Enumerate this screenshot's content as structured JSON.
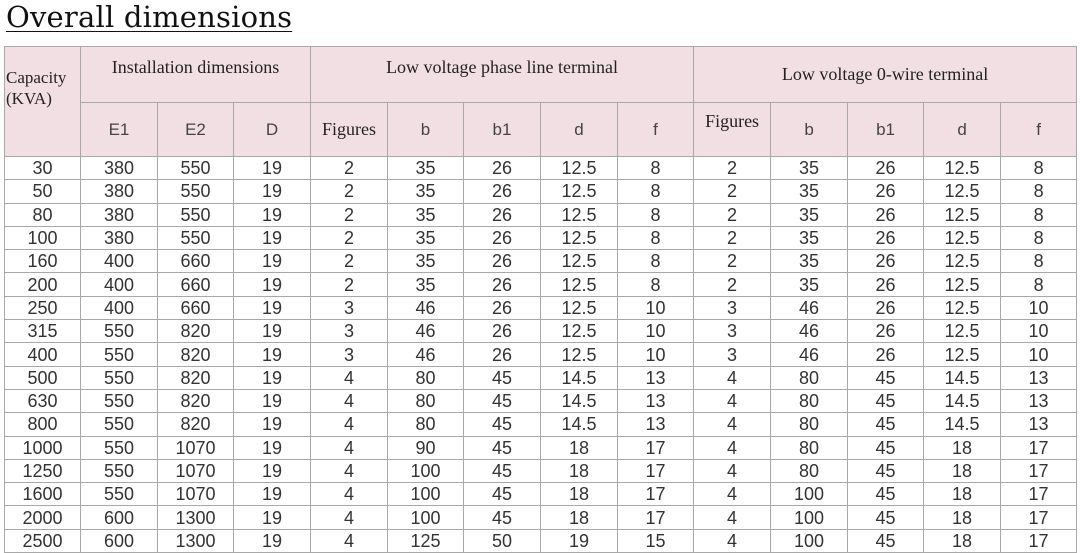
{
  "title": "Overall dimensions",
  "table": {
    "header_groups": {
      "capacity": "Capacity (KVA)",
      "installation": "Installation dimensions",
      "phase_line": "Low voltage phase line terminal",
      "zero_wire": "Low voltage 0-wire terminal"
    },
    "sub_headers": [
      "E1",
      "E2",
      "D",
      "Figures",
      "b",
      "b1",
      "d",
      "f",
      "Figures",
      "b",
      "b1",
      "d",
      "f"
    ],
    "header_color": "#f2dfe3",
    "rows": [
      [
        "30",
        "380",
        "550",
        "19",
        "2",
        "35",
        "26",
        "12.5",
        "8",
        "2",
        "35",
        "26",
        "12.5",
        "8"
      ],
      [
        "50",
        "380",
        "550",
        "19",
        "2",
        "35",
        "26",
        "12.5",
        "8",
        "2",
        "35",
        "26",
        "12.5",
        "8"
      ],
      [
        "80",
        "380",
        "550",
        "19",
        "2",
        "35",
        "26",
        "12.5",
        "8",
        "2",
        "35",
        "26",
        "12.5",
        "8"
      ],
      [
        "100",
        "380",
        "550",
        "19",
        "2",
        "35",
        "26",
        "12.5",
        "8",
        "2",
        "35",
        "26",
        "12.5",
        "8"
      ],
      [
        "160",
        "400",
        "660",
        "19",
        "2",
        "35",
        "26",
        "12.5",
        "8",
        "2",
        "35",
        "26",
        "12.5",
        "8"
      ],
      [
        "200",
        "400",
        "660",
        "19",
        "2",
        "35",
        "26",
        "12.5",
        "8",
        "2",
        "35",
        "26",
        "12.5",
        "8"
      ],
      [
        "250",
        "400",
        "660",
        "19",
        "3",
        "46",
        "26",
        "12.5",
        "10",
        "3",
        "46",
        "26",
        "12.5",
        "10"
      ],
      [
        "315",
        "550",
        "820",
        "19",
        "3",
        "46",
        "26",
        "12.5",
        "10",
        "3",
        "46",
        "26",
        "12.5",
        "10"
      ],
      [
        "400",
        "550",
        "820",
        "19",
        "3",
        "46",
        "26",
        "12.5",
        "10",
        "3",
        "46",
        "26",
        "12.5",
        "10"
      ],
      [
        "500",
        "550",
        "820",
        "19",
        "4",
        "80",
        "45",
        "14.5",
        "13",
        "4",
        "80",
        "45",
        "14.5",
        "13"
      ],
      [
        "630",
        "550",
        "820",
        "19",
        "4",
        "80",
        "45",
        "14.5",
        "13",
        "4",
        "80",
        "45",
        "14.5",
        "13"
      ],
      [
        "800",
        "550",
        "820",
        "19",
        "4",
        "80",
        "45",
        "14.5",
        "13",
        "4",
        "80",
        "45",
        "14.5",
        "13"
      ],
      [
        "1000",
        "550",
        "1070",
        "19",
        "4",
        "90",
        "45",
        "18",
        "17",
        "4",
        "80",
        "45",
        "18",
        "17"
      ],
      [
        "1250",
        "550",
        "1070",
        "19",
        "4",
        "100",
        "45",
        "18",
        "17",
        "4",
        "80",
        "45",
        "18",
        "17"
      ],
      [
        "1600",
        "550",
        "1070",
        "19",
        "4",
        "100",
        "45",
        "18",
        "17",
        "4",
        "100",
        "45",
        "18",
        "17"
      ],
      [
        "2000",
        "600",
        "1300",
        "19",
        "4",
        "100",
        "45",
        "18",
        "17",
        "4",
        "100",
        "45",
        "18",
        "17"
      ],
      [
        "2500",
        "600",
        "1300",
        "19",
        "4",
        "125",
        "50",
        "19",
        "15",
        "4",
        "100",
        "45",
        "18",
        "17"
      ]
    ]
  }
}
